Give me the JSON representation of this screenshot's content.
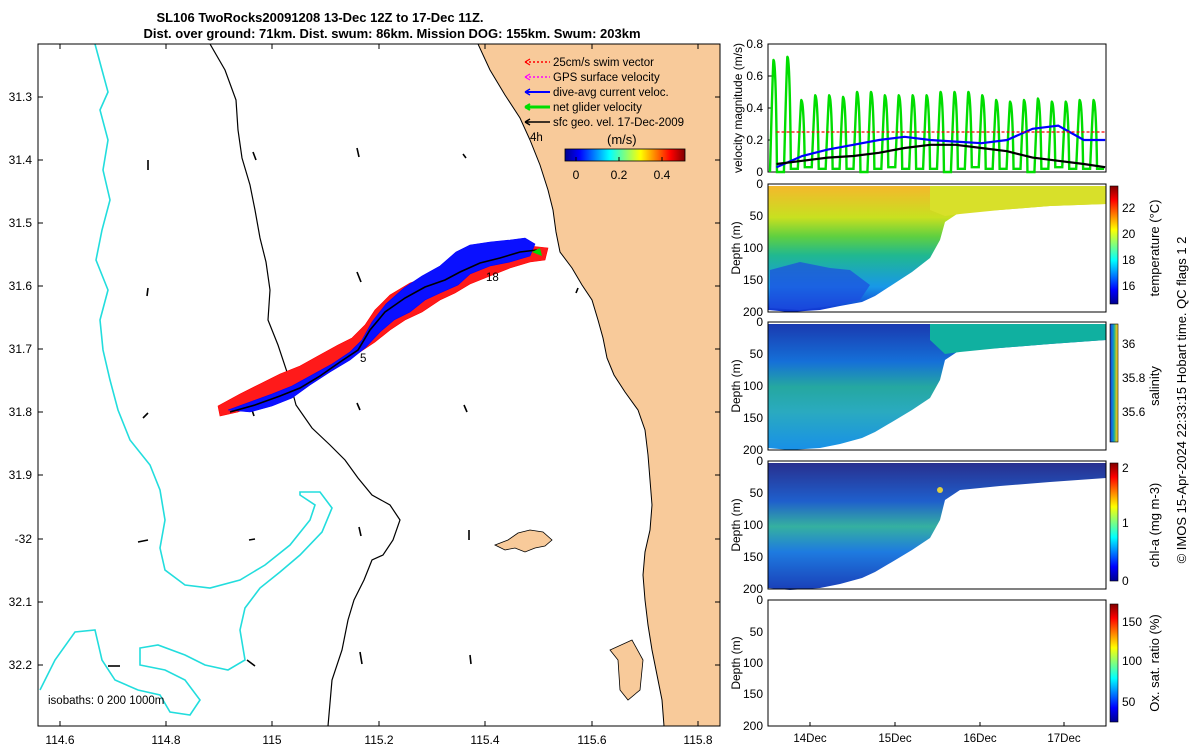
{
  "title": {
    "line1": "SL106 TwoRocks20091208 13-Dec 12Z to 17-Dec 11Z.",
    "line2": "Dist. over ground: 71km. Dist. swum: 86km. Mission DOG: 155km. Swum: 203km"
  },
  "colors": {
    "land": "#F8CA9A",
    "coastline": "#000000",
    "isobath_200": "#000000",
    "isobath_1000": "#22DDDD",
    "swim_vector": "#FF0000",
    "dive_avg_current": "#0000FF",
    "net_glider": "#00DD00",
    "sfc_geo": "#000000",
    "gps_surface": "#FF00FF"
  },
  "map": {
    "lon_ticks": [
      "114.6",
      "114.8",
      "115",
      "115.2",
      "115.4",
      "115.6",
      "115.8"
    ],
    "lat_ticks": [
      "31.3",
      "31.4",
      "31.5",
      "31.6",
      "31.7",
      "31.8",
      "31.9",
      "-32",
      "32.1",
      "32.2"
    ],
    "lon_range": [
      114.59,
      115.87
    ],
    "lat_range": [
      -32.29,
      -31.23
    ],
    "legend": [
      {
        "label": "25cm/s swim vector",
        "color": "#FF0000",
        "style": "dotted"
      },
      {
        "label": "GPS surface velocity",
        "color": "#FF00FF",
        "style": "dotted"
      },
      {
        "label": "dive-avg current veloc.",
        "color": "#0000FF",
        "style": "solid"
      },
      {
        "label": "net glider velocity",
        "color": "#00DD00",
        "style": "solid"
      },
      {
        "label": "sfc geo. vel. 17-Dec-2009",
        "color": "#000000",
        "style": "solid"
      }
    ],
    "colorbar": {
      "label": "(m/s)",
      "ticks": [
        "0",
        "0.2",
        "0.4"
      ],
      "range": [
        -0.05,
        0.5
      ]
    },
    "isobaths_label": "isobaths: 0   200  1000m",
    "track_labels": [
      "4h",
      "18",
      "5"
    ]
  },
  "right_panels": {
    "x_ticks": [
      "14Dec",
      "15Dec",
      "16Dec",
      "17Dec"
    ],
    "copyright": "© IMOS 15-Apr-2024 22:33:15 Hobart time. QC flags 1  2",
    "velocity": {
      "ylabel": "velocity magnitude (m/s)",
      "y_ticks": [
        "0",
        "0.2",
        "0.4",
        "0.6",
        "0.8"
      ]
    },
    "depth_ylabel": "Depth (m)",
    "depth_ticks": [
      "0",
      "50",
      "100",
      "150",
      "200"
    ],
    "temperature": {
      "label": "temperature (°C)",
      "ticks": [
        "16",
        "18",
        "20",
        "22"
      ]
    },
    "salinity": {
      "label": "salinity",
      "ticks": [
        "35.6",
        "35.8",
        "36"
      ]
    },
    "chla": {
      "label": "chl-a (mg m-3)",
      "ticks": [
        "0",
        "1",
        "2"
      ]
    },
    "oxygen": {
      "label": "Ox. sat. ratio (%)",
      "ticks": [
        "50",
        "100",
        "150"
      ]
    }
  },
  "chart_data": [
    {
      "type": "line",
      "title": "",
      "xlabel": "",
      "ylabel": "velocity magnitude (m/s)",
      "xlim": [
        "13-Dec 12Z",
        "17-Dec 11Z"
      ],
      "ylim": [
        0,
        0.8
      ],
      "x": [
        "13.6",
        "13.9",
        "14.2",
        "14.5",
        "14.8",
        "15.1",
        "15.4",
        "15.7",
        "16.0",
        "16.3",
        "16.6",
        "16.9",
        "17.2",
        "17.45"
      ],
      "series": [
        {
          "name": "dive-avg current veloc.",
          "color": "#0000FF",
          "values": [
            0.03,
            0.1,
            0.14,
            0.17,
            0.2,
            0.22,
            0.2,
            0.19,
            0.18,
            0.2,
            0.27,
            0.29,
            0.2,
            0.2
          ]
        },
        {
          "name": "sfc geo. vel. 17-Dec-2009",
          "color": "#000000",
          "values": [
            0.05,
            0.07,
            0.09,
            0.1,
            0.12,
            0.15,
            0.17,
            0.17,
            0.15,
            0.13,
            0.09,
            0.07,
            0.05,
            0.03
          ]
        },
        {
          "name": "25cm/s swim vector",
          "color": "#FF0000",
          "values": [
            0.25,
            0.25,
            0.25,
            0.25,
            0.25,
            0.25,
            0.25,
            0.25,
            0.25,
            0.25,
            0.25,
            0.25,
            0.25,
            0.25
          ]
        }
      ],
      "oscillating_series": {
        "name": "net glider velocity",
        "color": "#00DD00",
        "peaks": [
          0.7,
          0.72,
          0.45,
          0.48,
          0.48,
          0.47,
          0.5,
          0.5,
          0.48,
          0.48,
          0.48,
          0.48,
          0.5,
          0.5,
          0.5,
          0.48,
          0.45,
          0.44,
          0.45,
          0.46,
          0.44,
          0.44,
          0.45,
          0.45
        ],
        "troughs": [
          0.0,
          0.02,
          0.03,
          0.02,
          0.02,
          0.02
        ]
      }
    },
    {
      "type": "heatmap",
      "ylabel": "Depth (m)",
      "colorbar_label": "temperature (°C)",
      "ylim": [
        200,
        0
      ],
      "clim": [
        15,
        23.5
      ]
    },
    {
      "type": "heatmap",
      "ylabel": "Depth (m)",
      "colorbar_label": "salinity",
      "ylim": [
        200,
        0
      ],
      "clim": [
        35.45,
        36.1
      ]
    },
    {
      "type": "heatmap",
      "ylabel": "Depth (m)",
      "colorbar_label": "chl-a (mg m-3)",
      "ylim": [
        200,
        0
      ],
      "clim": [
        0,
        2
      ]
    },
    {
      "type": "heatmap",
      "ylabel": "Depth (m)",
      "colorbar_label": "Ox. sat. ratio (%)",
      "ylim": [
        200,
        0
      ],
      "clim": [
        25,
        175
      ]
    }
  ]
}
